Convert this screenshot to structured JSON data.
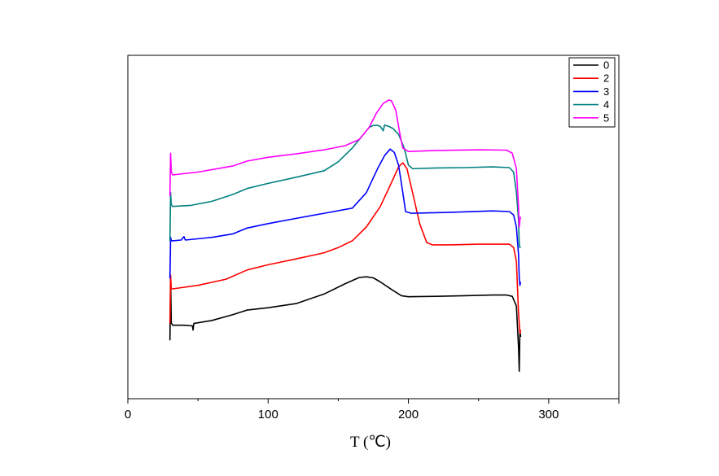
{
  "chart_data": {
    "type": "line",
    "title": "",
    "xlabel": "T (℃)",
    "ylabel": "",
    "xlim": [
      0,
      350
    ],
    "ylim": [
      0,
      1
    ],
    "x_ticks": [
      0,
      100,
      200,
      300
    ],
    "x_tick_labels": [
      "0",
      "100",
      "200",
      "300"
    ],
    "y_ticks_visible": false,
    "grid": false,
    "legend": {
      "placement": "top-right"
    },
    "series": [
      {
        "name": "0",
        "color": "#000000",
        "points": [
          [
            30,
            0.17
          ],
          [
            30.5,
            0.35
          ],
          [
            31,
            0.22
          ],
          [
            32,
            0.214
          ],
          [
            40,
            0.214
          ],
          [
            46,
            0.212
          ],
          [
            46.5,
            0.2
          ],
          [
            47,
            0.219
          ],
          [
            60,
            0.228
          ],
          [
            75,
            0.245
          ],
          [
            85,
            0.258
          ],
          [
            100,
            0.265
          ],
          [
            120,
            0.277
          ],
          [
            140,
            0.305
          ],
          [
            155,
            0.335
          ],
          [
            165,
            0.353
          ],
          [
            170,
            0.355
          ],
          [
            175,
            0.352
          ],
          [
            180,
            0.34
          ],
          [
            188,
            0.318
          ],
          [
            195,
            0.3
          ],
          [
            200,
            0.297
          ],
          [
            220,
            0.298
          ],
          [
            240,
            0.3
          ],
          [
            260,
            0.302
          ],
          [
            270,
            0.302
          ],
          [
            274,
            0.298
          ],
          [
            277,
            0.27
          ],
          [
            278.5,
            0.15
          ],
          [
            279,
            0.08
          ],
          [
            279.5,
            0.2
          ],
          [
            280,
            0.18
          ]
        ]
      },
      {
        "name": "2",
        "color": "#ff0000",
        "points": [
          [
            30,
            0.22
          ],
          [
            30.5,
            0.36
          ],
          [
            31,
            0.32
          ],
          [
            32,
            0.32
          ],
          [
            50,
            0.33
          ],
          [
            70,
            0.348
          ],
          [
            85,
            0.375
          ],
          [
            100,
            0.39
          ],
          [
            120,
            0.407
          ],
          [
            140,
            0.425
          ],
          [
            150,
            0.44
          ],
          [
            160,
            0.46
          ],
          [
            170,
            0.5
          ],
          [
            180,
            0.56
          ],
          [
            188,
            0.63
          ],
          [
            193,
            0.675
          ],
          [
            196,
            0.687
          ],
          [
            199,
            0.67
          ],
          [
            203,
            0.6
          ],
          [
            208,
            0.51
          ],
          [
            213,
            0.455
          ],
          [
            217,
            0.448
          ],
          [
            230,
            0.448
          ],
          [
            250,
            0.45
          ],
          [
            272,
            0.45
          ],
          [
            275,
            0.44
          ],
          [
            277,
            0.4
          ],
          [
            278.5,
            0.25
          ],
          [
            279.5,
            0.19
          ],
          [
            280,
            0.2
          ]
        ]
      },
      {
        "name": "3",
        "color": "#0000ff",
        "points": [
          [
            30,
            0.35
          ],
          [
            30.5,
            0.47
          ],
          [
            31,
            0.46
          ],
          [
            32,
            0.46
          ],
          [
            38,
            0.462
          ],
          [
            40,
            0.472
          ],
          [
            41,
            0.462
          ],
          [
            60,
            0.47
          ],
          [
            75,
            0.48
          ],
          [
            85,
            0.497
          ],
          [
            100,
            0.51
          ],
          [
            120,
            0.525
          ],
          [
            140,
            0.54
          ],
          [
            160,
            0.555
          ],
          [
            170,
            0.6
          ],
          [
            178,
            0.67
          ],
          [
            183,
            0.708
          ],
          [
            187,
            0.727
          ],
          [
            190,
            0.717
          ],
          [
            193,
            0.68
          ],
          [
            196,
            0.6
          ],
          [
            198,
            0.545
          ],
          [
            202,
            0.54
          ],
          [
            230,
            0.543
          ],
          [
            260,
            0.547
          ],
          [
            272,
            0.545
          ],
          [
            275,
            0.535
          ],
          [
            277,
            0.5
          ],
          [
            278.5,
            0.42
          ],
          [
            279,
            0.35
          ],
          [
            279.5,
            0.33
          ],
          [
            280,
            0.34
          ]
        ]
      },
      {
        "name": "4",
        "color": "#008080",
        "points": [
          [
            30,
            0.46
          ],
          [
            30.5,
            0.6
          ],
          [
            31,
            0.565
          ],
          [
            32,
            0.56
          ],
          [
            45,
            0.563
          ],
          [
            60,
            0.575
          ],
          [
            75,
            0.595
          ],
          [
            85,
            0.612
          ],
          [
            100,
            0.627
          ],
          [
            120,
            0.645
          ],
          [
            140,
            0.664
          ],
          [
            150,
            0.69
          ],
          [
            160,
            0.73
          ],
          [
            168,
            0.77
          ],
          [
            172,
            0.79
          ],
          [
            175,
            0.796
          ],
          [
            178,
            0.796
          ],
          [
            180,
            0.793
          ],
          [
            182,
            0.78
          ],
          [
            183,
            0.797
          ],
          [
            186,
            0.793
          ],
          [
            189,
            0.787
          ],
          [
            193,
            0.77
          ],
          [
            197,
            0.73
          ],
          [
            200,
            0.68
          ],
          [
            203,
            0.67
          ],
          [
            220,
            0.672
          ],
          [
            240,
            0.673
          ],
          [
            260,
            0.675
          ],
          [
            272,
            0.673
          ],
          [
            275,
            0.66
          ],
          [
            277,
            0.6
          ],
          [
            278.5,
            0.52
          ],
          [
            279,
            0.45
          ],
          [
            279.5,
            0.44
          ],
          [
            280,
            0.44
          ]
        ]
      },
      {
        "name": "5",
        "color": "#ff00ff",
        "points": [
          [
            30,
            0.59
          ],
          [
            30.5,
            0.715
          ],
          [
            31,
            0.66
          ],
          [
            32,
            0.652
          ],
          [
            50,
            0.66
          ],
          [
            75,
            0.678
          ],
          [
            85,
            0.692
          ],
          [
            100,
            0.703
          ],
          [
            120,
            0.713
          ],
          [
            140,
            0.725
          ],
          [
            155,
            0.737
          ],
          [
            165,
            0.755
          ],
          [
            172,
            0.79
          ],
          [
            177,
            0.83
          ],
          [
            182,
            0.86
          ],
          [
            186,
            0.87
          ],
          [
            188,
            0.867
          ],
          [
            191,
            0.84
          ],
          [
            194,
            0.77
          ],
          [
            196,
            0.73
          ],
          [
            200,
            0.72
          ],
          [
            220,
            0.723
          ],
          [
            250,
            0.725
          ],
          [
            270,
            0.724
          ],
          [
            274,
            0.715
          ],
          [
            277,
            0.67
          ],
          [
            278.5,
            0.56
          ],
          [
            279,
            0.5
          ],
          [
            279.5,
            0.52
          ],
          [
            280,
            0.53
          ]
        ]
      }
    ]
  }
}
